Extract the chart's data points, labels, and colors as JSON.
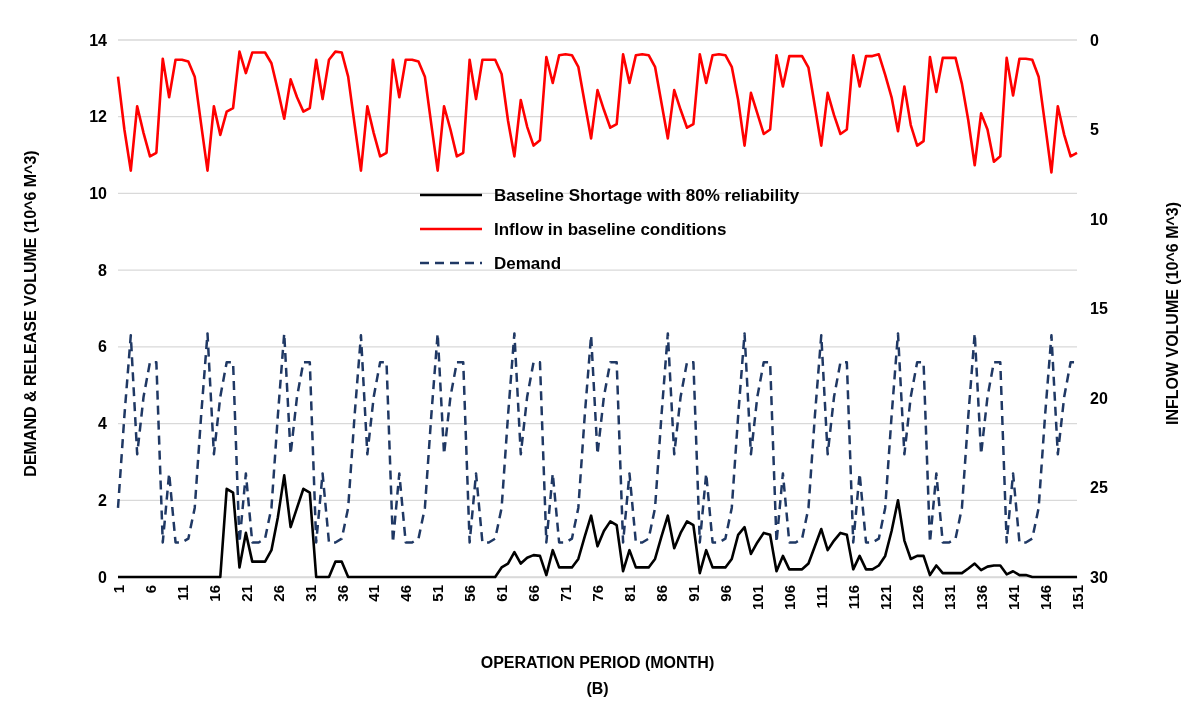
{
  "chart_data": {
    "type": "line",
    "xlabel": "OPERATION PERIOD (MONTH)",
    "ylabel": "DEMAND & RELEASE VOLUME (10^6  M^3)",
    "y2label": "INFLOW VOLUME    (10^6 M^3)",
    "annotations": [
      "(B)"
    ],
    "categories": [
      "1",
      null,
      null,
      null,
      null,
      "6",
      null,
      null,
      null,
      null,
      "11",
      null,
      null,
      null,
      null,
      "16",
      null,
      null,
      null,
      null,
      "21",
      null,
      null,
      null,
      null,
      "26",
      null,
      null,
      null,
      null,
      "31",
      null,
      null,
      null,
      null,
      "36",
      null,
      null,
      null,
      null,
      "41",
      null,
      null,
      null,
      null,
      "46",
      null,
      null,
      null,
      null,
      "51",
      null,
      null,
      null,
      null,
      "56",
      null,
      null,
      null,
      null,
      "61",
      null,
      null,
      null,
      null,
      "66",
      null,
      null,
      null,
      null,
      "71",
      null,
      null,
      null,
      null,
      "76",
      null,
      null,
      null,
      null,
      "81",
      null,
      null,
      null,
      null,
      "86",
      null,
      null,
      null,
      null,
      "91",
      null,
      null,
      null,
      null,
      "96",
      null,
      null,
      null,
      null,
      "101",
      null,
      null,
      null,
      null,
      "106",
      null,
      null,
      null,
      null,
      "111",
      null,
      null,
      null,
      null,
      "116",
      null,
      null,
      null,
      null,
      "121",
      null,
      null,
      null,
      null,
      "126",
      null,
      null,
      null,
      null,
      "131",
      null,
      null,
      null,
      null,
      "136",
      null,
      null,
      null,
      null,
      "141",
      null,
      null,
      null,
      null,
      "146",
      null,
      null,
      null,
      null,
      "151"
    ],
    "series": [
      {
        "name": "Baseline Shortage with 80% reliability",
        "color": "#000000",
        "line_style": "solid",
        "axis": "y",
        "values": [
          0,
          0,
          0,
          0,
          0,
          0,
          0,
          0,
          0,
          0,
          0,
          0,
          0,
          0,
          0,
          0,
          0,
          2.3,
          2.2,
          0.25,
          1.15,
          0.4,
          0.4,
          0.4,
          0.7,
          1.55,
          2.65,
          1.3,
          1.8,
          2.3,
          2.2,
          0,
          0,
          0,
          0.4,
          0.4,
          0,
          0,
          0,
          0,
          0,
          0,
          0,
          0,
          0,
          0,
          0,
          0,
          0,
          0,
          0,
          0,
          0,
          0,
          0,
          0,
          0,
          0,
          0,
          0,
          0.25,
          0.35,
          0.65,
          0.35,
          0.5,
          0.57,
          0.55,
          0.05,
          0.7,
          0.25,
          0.25,
          0.25,
          0.47,
          1.05,
          1.6,
          0.8,
          1.2,
          1.45,
          1.35,
          0.15,
          0.7,
          0.25,
          0.25,
          0.25,
          0.47,
          1.05,
          1.6,
          0.75,
          1.15,
          1.45,
          1.35,
          0.1,
          0.7,
          0.25,
          0.25,
          0.25,
          0.47,
          1.1,
          1.3,
          0.6,
          0.9,
          1.15,
          1.1,
          0.15,
          0.55,
          0.2,
          0.2,
          0.2,
          0.35,
          0.8,
          1.25,
          0.7,
          0.95,
          1.15,
          1.1,
          0.2,
          0.55,
          0.2,
          0.2,
          0.3,
          0.55,
          1.2,
          2.0,
          0.95,
          0.47,
          0.55,
          0.55,
          0.05,
          0.3,
          0.1,
          0.1,
          0.1,
          0.1,
          0.22,
          0.35,
          0.18,
          0.27,
          0.3,
          0.3,
          0.07,
          0.15,
          0.05,
          0.05,
          0,
          0,
          0,
          0,
          0,
          0,
          0,
          0
        ]
      },
      {
        "name": "Inflow  in baseline conditions",
        "color": "#ff0000",
        "line_style": "solid",
        "axis": "y2",
        "values": [
          2.05,
          5.0,
          7.3,
          3.7,
          5.2,
          6.5,
          6.3,
          1.05,
          3.2,
          1.1,
          1.1,
          1.2,
          2.05,
          4.7,
          7.3,
          3.7,
          5.3,
          4.0,
          3.8,
          0.65,
          1.85,
          0.7,
          0.7,
          0.7,
          1.3,
          2.8,
          4.4,
          2.2,
          3.2,
          4.0,
          3.8,
          1.1,
          3.3,
          1.1,
          0.65,
          0.7,
          2.05,
          4.7,
          7.3,
          3.7,
          5.2,
          6.5,
          6.3,
          1.1,
          3.2,
          1.1,
          1.1,
          1.2,
          2.05,
          4.7,
          7.3,
          3.7,
          5.0,
          6.5,
          6.3,
          1.1,
          3.3,
          1.1,
          1.1,
          1.1,
          1.9,
          4.5,
          6.5,
          3.35,
          4.85,
          5.9,
          5.6,
          0.95,
          2.4,
          0.85,
          0.8,
          0.85,
          1.5,
          3.5,
          5.5,
          2.8,
          3.9,
          4.9,
          4.7,
          0.8,
          2.4,
          0.85,
          0.8,
          0.85,
          1.5,
          3.5,
          5.5,
          2.8,
          3.9,
          4.9,
          4.7,
          0.8,
          2.4,
          0.85,
          0.8,
          0.85,
          1.5,
          3.35,
          5.9,
          2.95,
          4.1,
          5.25,
          5.0,
          0.85,
          2.6,
          0.9,
          0.9,
          0.9,
          1.55,
          3.7,
          5.9,
          2.95,
          4.2,
          5.25,
          5.0,
          0.85,
          2.6,
          0.9,
          0.9,
          0.8,
          1.95,
          3.2,
          5.1,
          2.6,
          4.75,
          5.9,
          5.65,
          0.95,
          2.9,
          1.0,
          1.0,
          1.0,
          2.45,
          4.5,
          7.0,
          4.1,
          5.0,
          6.8,
          6.5,
          1.0,
          3.1,
          1.05,
          1.05,
          1.1,
          2.05,
          4.7,
          7.4,
          3.7,
          5.3,
          6.5,
          6.3
        ]
      },
      {
        "name": "Demand",
        "color": "#1f3864",
        "line_style": "dashed",
        "axis": "y",
        "values": [
          1.8,
          4.2,
          6.3,
          3.2,
          4.7,
          5.6,
          5.6,
          0.9,
          2.7,
          0.9,
          0.9,
          1.0,
          1.8,
          4.2,
          6.35,
          3.2,
          4.7,
          5.6,
          5.6,
          0.9,
          2.7,
          0.9,
          0.9,
          1.0,
          1.8,
          4.2,
          6.35,
          3.2,
          4.7,
          5.6,
          5.6,
          0.9,
          2.7,
          0.9,
          0.9,
          1.0,
          1.8,
          4.2,
          6.3,
          3.2,
          4.7,
          5.6,
          5.6,
          0.9,
          2.7,
          0.9,
          0.9,
          1.0,
          1.8,
          4.2,
          6.35,
          3.2,
          4.7,
          5.6,
          5.6,
          0.9,
          2.7,
          0.9,
          0.9,
          1.0,
          1.8,
          4.2,
          6.35,
          3.2,
          4.7,
          5.6,
          5.6,
          0.9,
          2.7,
          0.9,
          0.9,
          1.0,
          1.8,
          4.2,
          6.3,
          3.2,
          4.7,
          5.6,
          5.6,
          0.9,
          2.7,
          0.9,
          0.9,
          1.0,
          1.8,
          4.2,
          6.35,
          3.2,
          4.7,
          5.6,
          5.6,
          0.9,
          2.7,
          0.9,
          0.9,
          1.0,
          1.8,
          4.2,
          6.35,
          3.2,
          4.7,
          5.6,
          5.6,
          0.9,
          2.7,
          0.9,
          0.9,
          1.0,
          1.8,
          4.2,
          6.3,
          3.2,
          4.7,
          5.6,
          5.6,
          0.9,
          2.7,
          0.9,
          0.9,
          1.0,
          1.8,
          4.2,
          6.35,
          3.2,
          4.7,
          5.6,
          5.6,
          0.9,
          2.7,
          0.9,
          0.9,
          1.0,
          1.8,
          4.2,
          6.35,
          3.2,
          4.7,
          5.6,
          5.6,
          0.9,
          2.7,
          0.9,
          0.9,
          1.0,
          1.8,
          4.2,
          6.3,
          3.2,
          4.7,
          5.6,
          5.6
        ]
      }
    ],
    "ylim": [
      0,
      14
    ],
    "yticks": [
      0,
      2,
      4,
      6,
      8,
      10,
      12,
      14
    ],
    "y2lim": [
      30,
      0
    ],
    "y2ticks": [
      0,
      5,
      10,
      15,
      20,
      25,
      30
    ],
    "grid": "y",
    "legend": "top",
    "marker": "none"
  }
}
